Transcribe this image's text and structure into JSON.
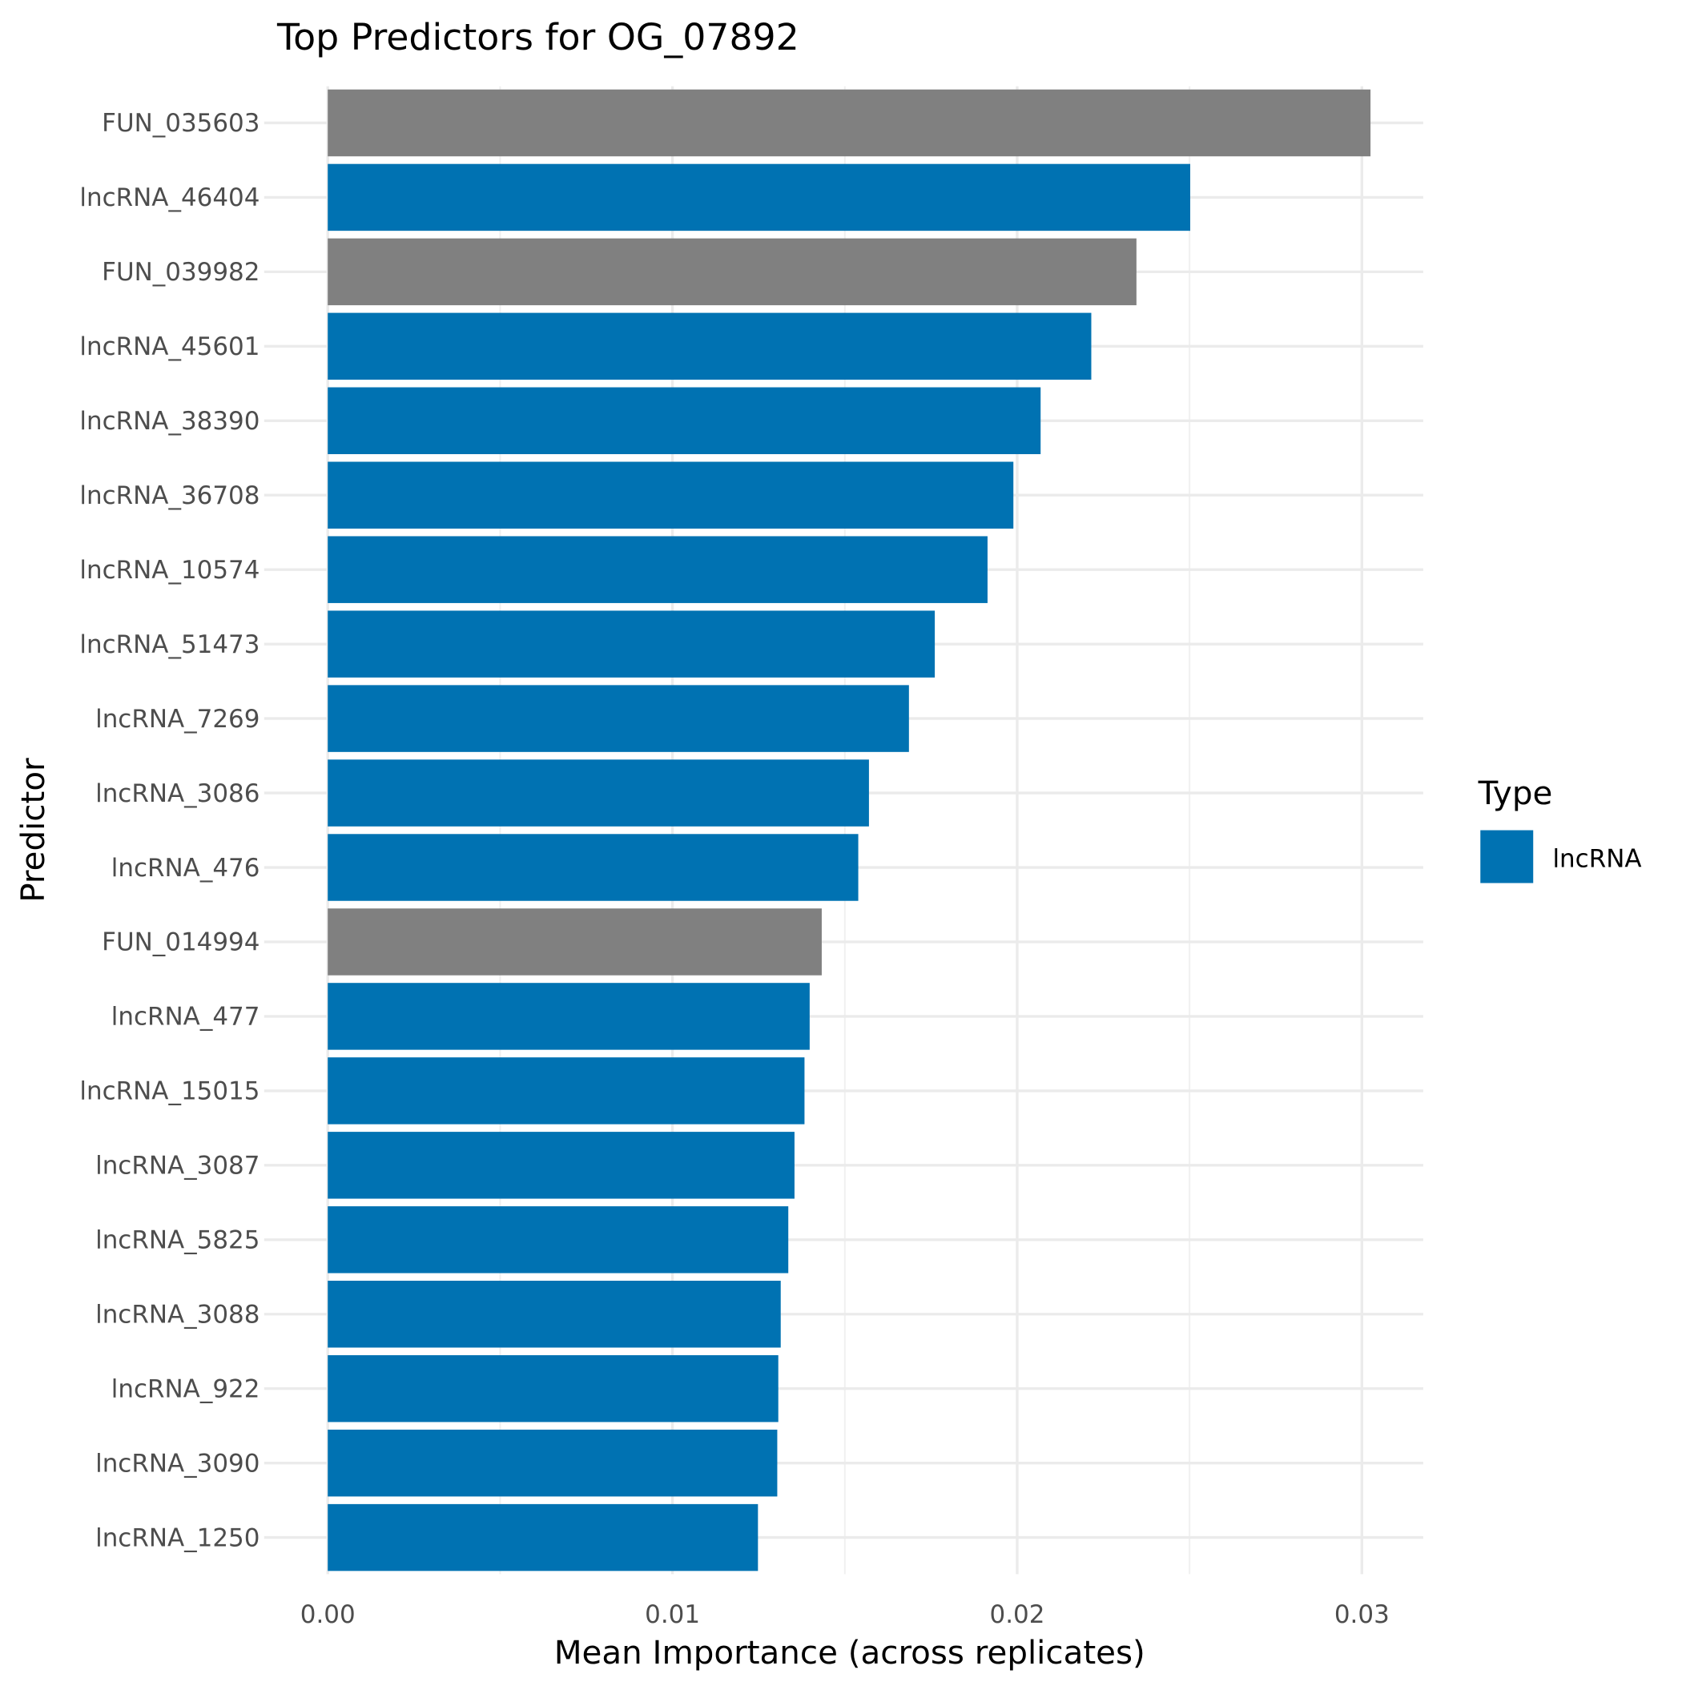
{
  "chart_data": {
    "type": "bar",
    "orientation": "horizontal",
    "title": "Top Predictors for OG_07892",
    "xlabel": "Mean Importance (across replicates)",
    "ylabel": "Predictor",
    "xlim": [
      0,
      0.0318
    ],
    "xticks": [
      0,
      0.01,
      0.02,
      0.03
    ],
    "xtick_labels": [
      "0.00",
      "0.01",
      "0.02",
      "0.03"
    ],
    "grid": true,
    "categories": [
      "FUN_035603",
      "lncRNA_46404",
      "FUN_039982",
      "lncRNA_45601",
      "lncRNA_38390",
      "lncRNA_36708",
      "lncRNA_10574",
      "lncRNA_51473",
      "lncRNA_7269",
      "lncRNA_3086",
      "lncRNA_476",
      "FUN_014994",
      "lncRNA_477",
      "lncRNA_15015",
      "lncRNA_3087",
      "lncRNA_5825",
      "lncRNA_3088",
      "lncRNA_922",
      "lncRNA_3090",
      "lncRNA_1250"
    ],
    "values": [
      0.03025,
      0.02502,
      0.02346,
      0.02215,
      0.02068,
      0.01989,
      0.01914,
      0.01761,
      0.01686,
      0.0157,
      0.01539,
      0.01433,
      0.01398,
      0.01383,
      0.01354,
      0.01336,
      0.01314,
      0.01307,
      0.01304,
      0.01248
    ],
    "types": [
      "FUN",
      "lncRNA",
      "FUN",
      "lncRNA",
      "lncRNA",
      "lncRNA",
      "lncRNA",
      "lncRNA",
      "lncRNA",
      "lncRNA",
      "lncRNA",
      "FUN",
      "lncRNA",
      "lncRNA",
      "lncRNA",
      "lncRNA",
      "lncRNA",
      "lncRNA",
      "lncRNA",
      "lncRNA"
    ],
    "colors": {
      "lncRNA": "#0072B2",
      "FUN": "#808080"
    },
    "legend": {
      "title": "Type",
      "entries": [
        "lncRNA"
      ],
      "placement": "right"
    }
  }
}
